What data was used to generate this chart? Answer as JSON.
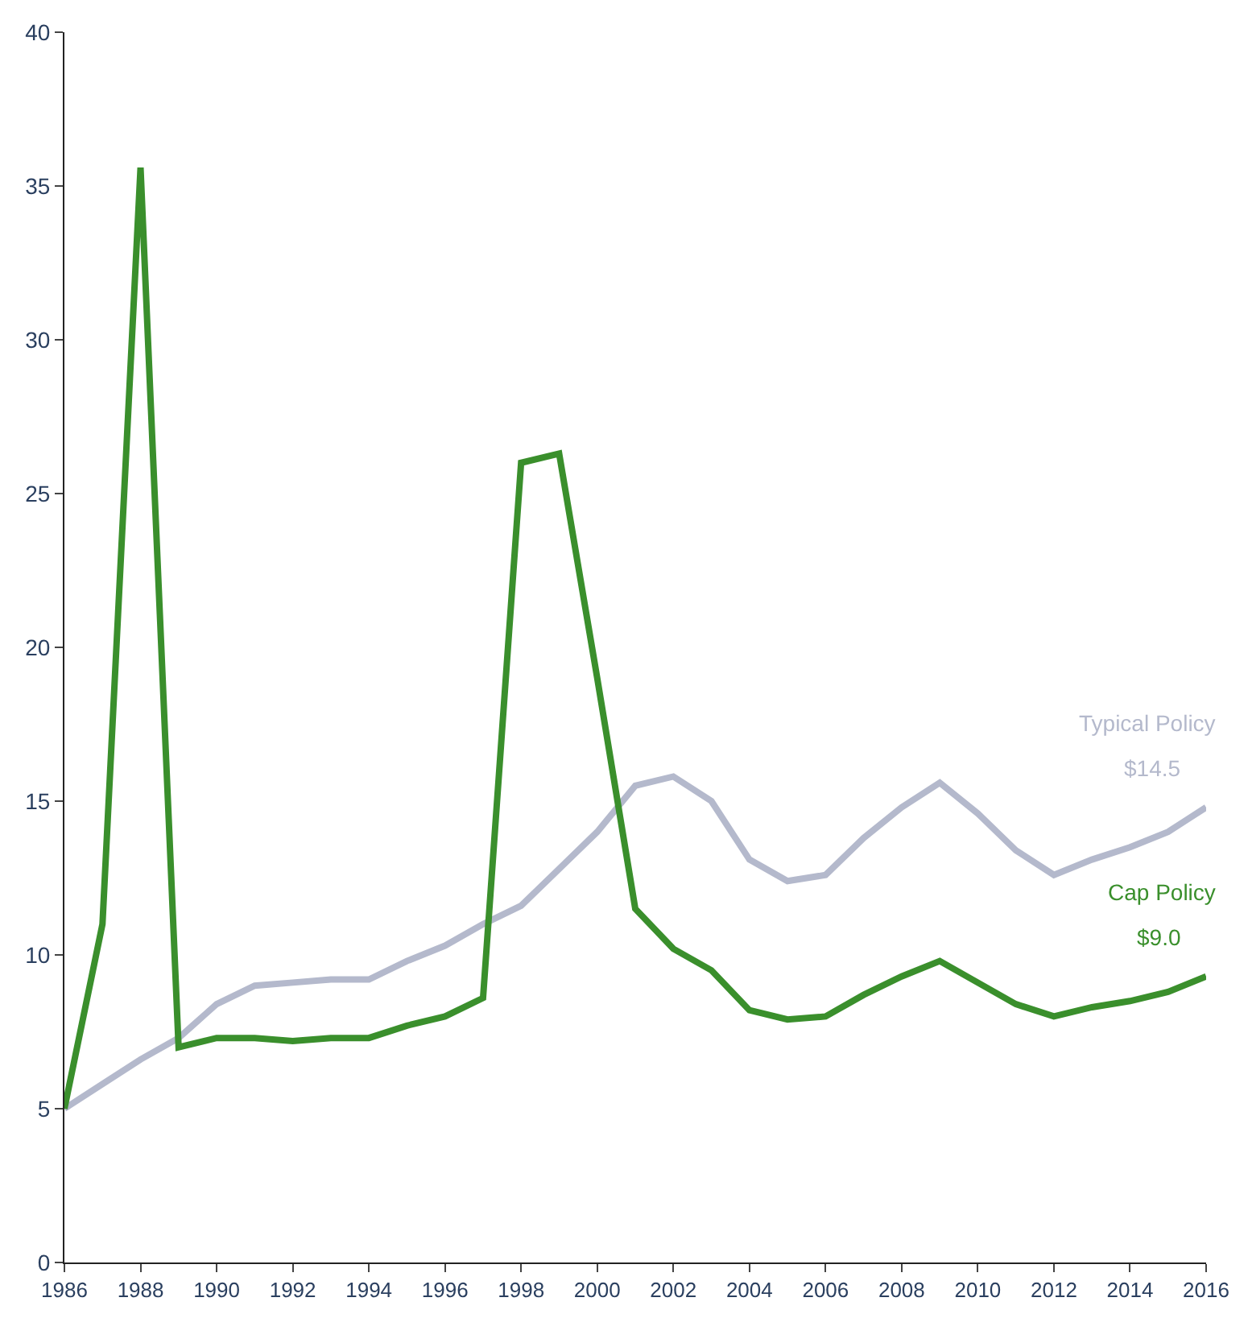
{
  "chart_data": {
    "type": "line",
    "x": [
      1986,
      1987,
      1988,
      1989,
      1990,
      1991,
      1992,
      1993,
      1994,
      1995,
      1996,
      1997,
      1998,
      1999,
      2000,
      2001,
      2002,
      2003,
      2004,
      2005,
      2006,
      2007,
      2008,
      2009,
      2010,
      2011,
      2012,
      2013,
      2014,
      2015,
      2016
    ],
    "series": [
      {
        "name": "Typical Policy",
        "color": "#b4b9cc",
        "values": [
          5.0,
          5.8,
          6.6,
          7.3,
          8.4,
          9.0,
          9.1,
          9.2,
          9.2,
          9.8,
          10.3,
          11.0,
          11.6,
          12.8,
          14.0,
          15.5,
          15.8,
          15.0,
          13.1,
          12.4,
          12.6,
          13.8,
          14.8,
          15.6,
          14.6,
          13.4,
          12.6,
          13.1,
          13.5,
          14.0,
          14.8
        ]
      },
      {
        "name": "Cap Policy",
        "color": "#3a8f2c",
        "values": [
          5.0,
          11.0,
          35.6,
          7.0,
          7.3,
          7.3,
          7.2,
          7.3,
          7.3,
          7.7,
          8.0,
          8.6,
          26.0,
          26.3,
          19.0,
          11.5,
          10.2,
          9.5,
          8.2,
          7.9,
          8.0,
          8.7,
          9.3,
          9.8,
          9.1,
          8.4,
          8.0,
          8.3,
          8.5,
          8.8,
          9.3
        ]
      }
    ],
    "annotations": [
      {
        "text": "$14.5",
        "x": 2016,
        "y": 14.8
      },
      {
        "text": "$9.0",
        "x": 2016,
        "y": 9.3
      }
    ],
    "xlim": [
      1986,
      2016
    ],
    "xticks": [
      1986,
      1988,
      1990,
      1992,
      1994,
      1996,
      1998,
      2000,
      2002,
      2004,
      2006,
      2008,
      2010,
      2012,
      2014,
      2016
    ],
    "ylim": [
      0,
      40
    ],
    "yticks": [
      0,
      5,
      10,
      15,
      20,
      25,
      30,
      35,
      40
    ],
    "legend": false,
    "marker": "none",
    "line_style": "solid"
  }
}
